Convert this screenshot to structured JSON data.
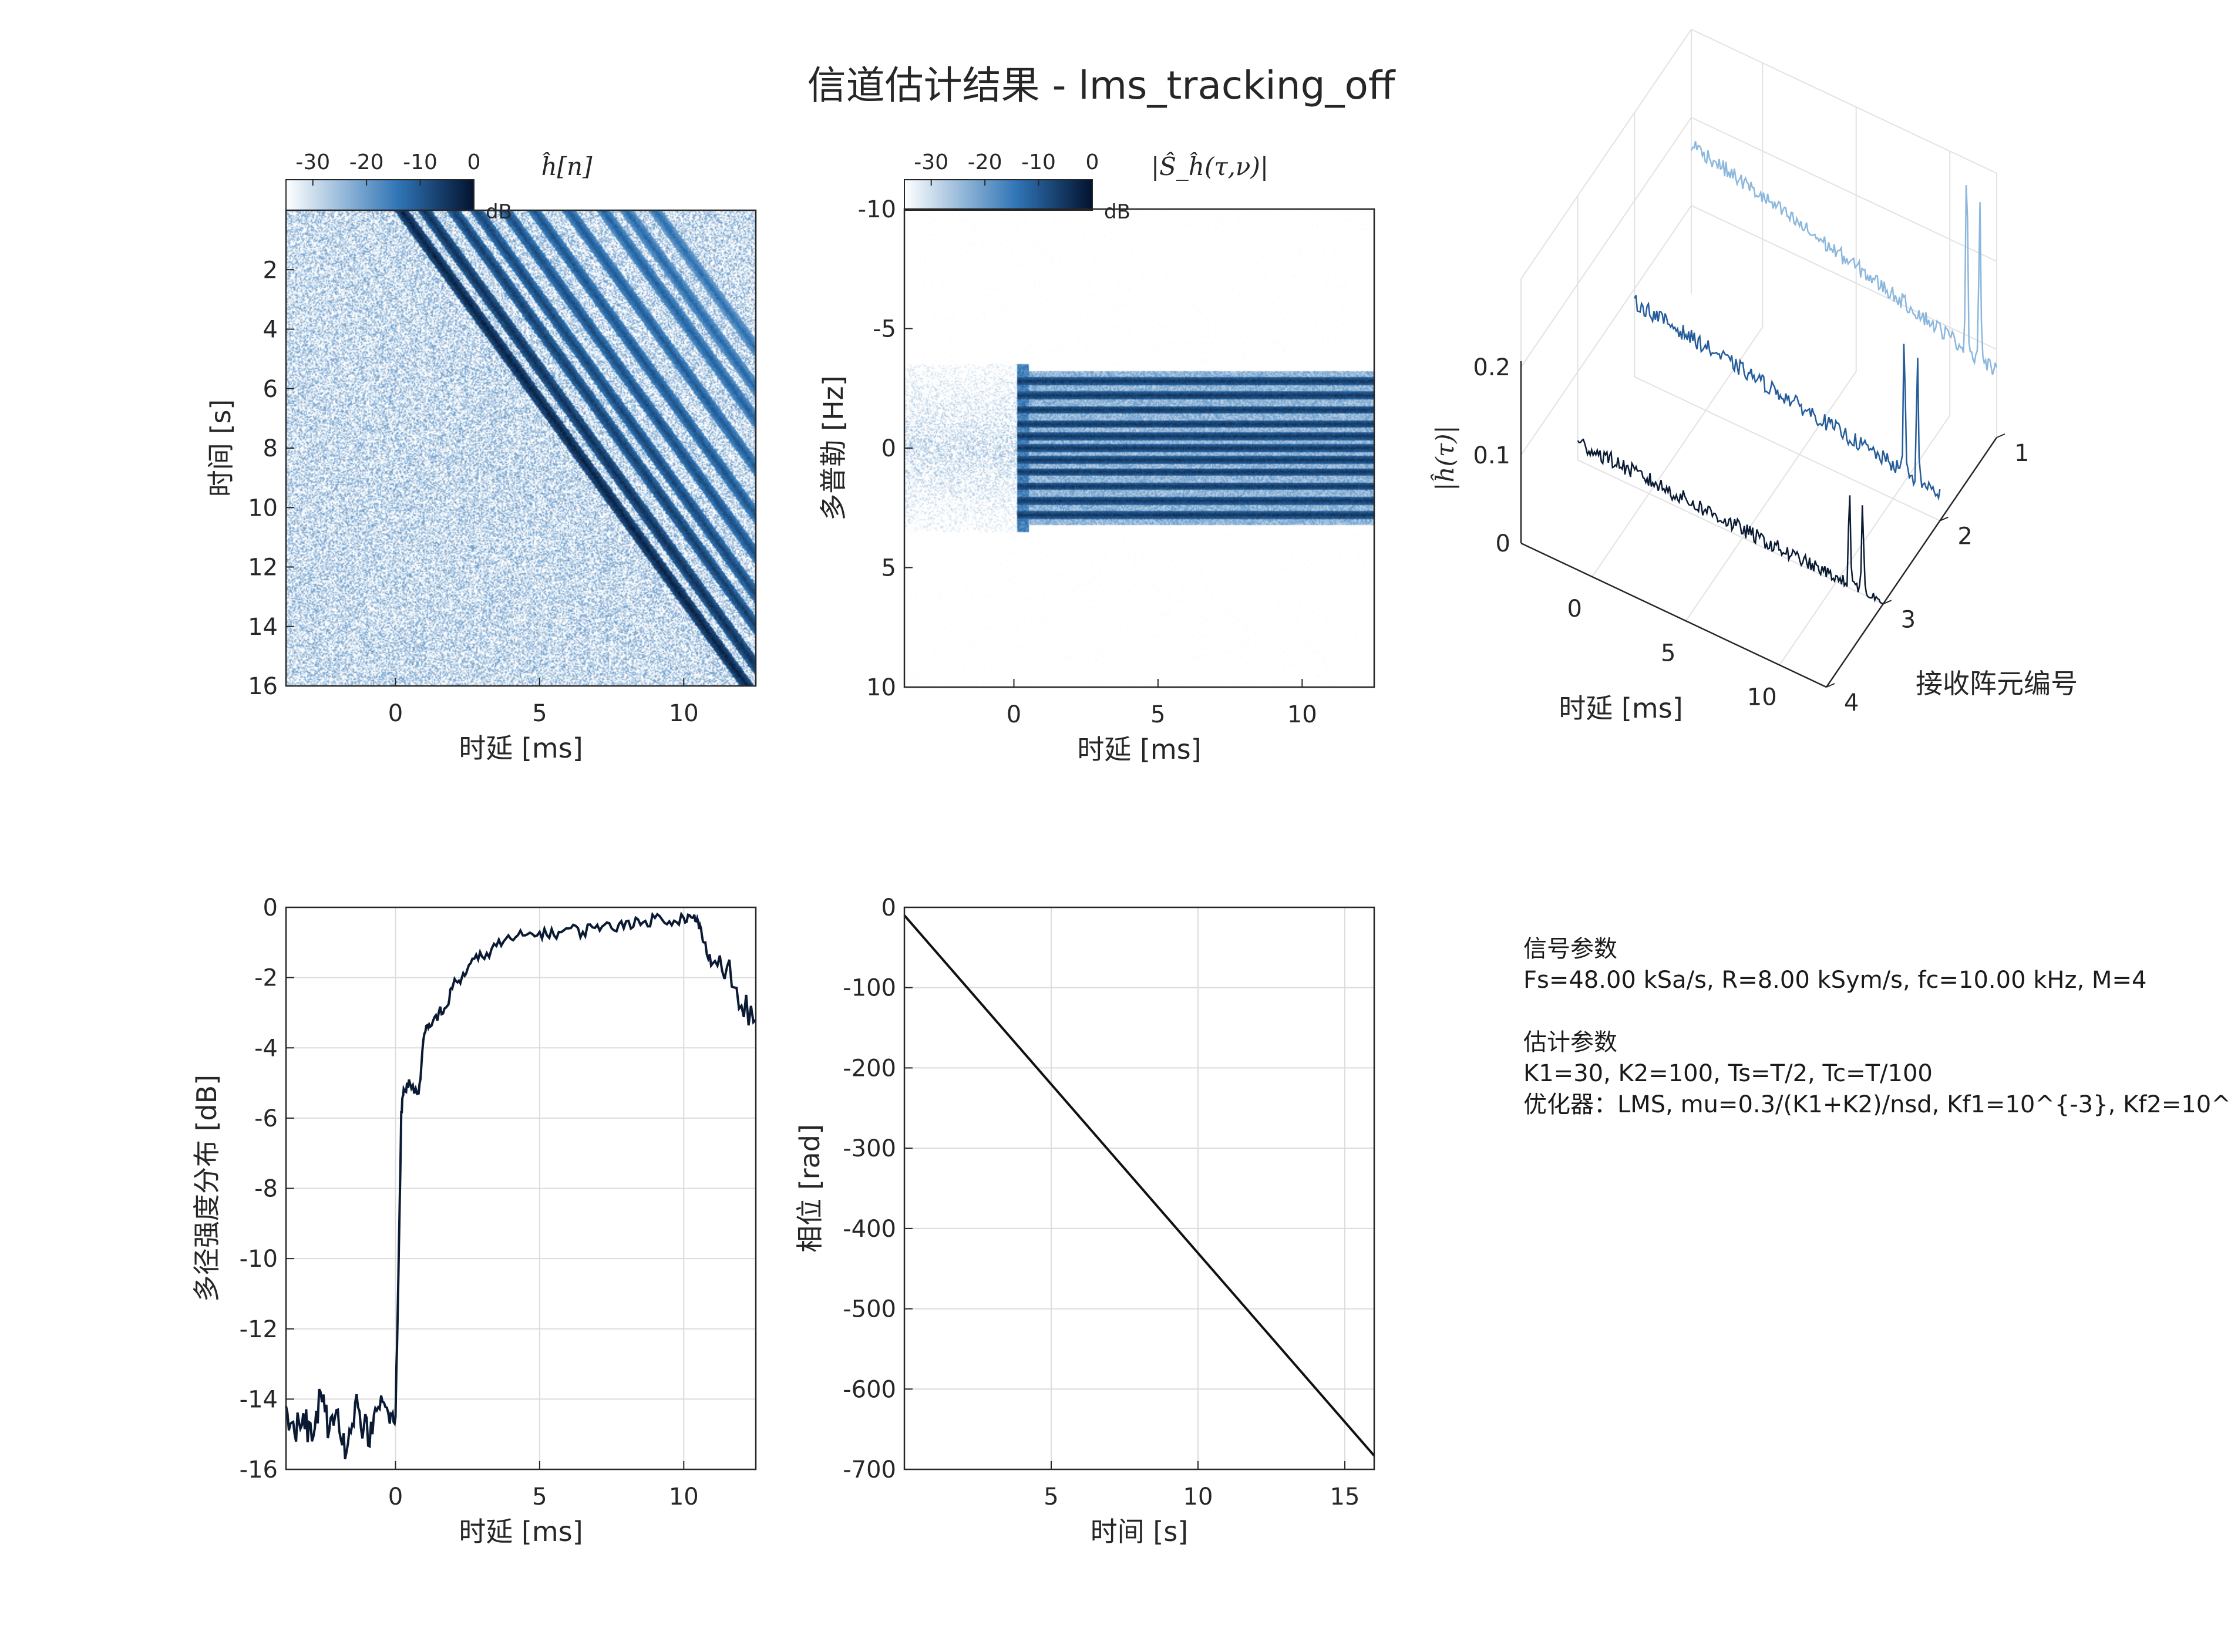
{
  "figure": {
    "title": "信道估计结果 - lms_tracking_off"
  },
  "colors": {
    "cmap_light": "#ffffff",
    "cmap_mid": "#2f74b5",
    "cmap_dark": "#03132f",
    "line": "#0a1a33",
    "grid": "#dcdcdc",
    "axis": "#262626"
  },
  "info_panel": {
    "signal_header": "信号参数",
    "signal_params": "Fs=48.00 kSa/s, R=8.00 kSym/s, fc=10.00 kHz, M=4",
    "estimation_header": "估计参数",
    "estimation_params": "K1=30, K2=100, Ts=T/2, Tc=T/100",
    "optimizer_params": "优化器：LMS, mu=0.3/(K1+K2)/nsd, Kf1=10^{-3}, Kf2=10^"
  },
  "chart_data": [
    {
      "id": "channel_impulse_response_time",
      "type": "heatmap",
      "title": "ĥ[n]",
      "xlabel": "时延 [ms]",
      "ylabel": "时间 [s]",
      "xlim": [
        -3.8,
        12.5
      ],
      "ylim": [
        0,
        16
      ],
      "y_reversed": true,
      "xticks": [
        0,
        5,
        10
      ],
      "yticks": [
        2,
        4,
        6,
        8,
        10,
        12,
        14,
        16
      ],
      "colorbar": {
        "label": "dB",
        "ticks": [
          -30,
          -20,
          -10,
          0
        ],
        "range": [
          -35,
          0
        ]
      },
      "paths": [
        {
          "delay_at_t0": 0.2,
          "slope_ms_per_s": 0.75,
          "level_db": 0
        },
        {
          "delay_at_t0": 1.0,
          "slope_ms_per_s": 0.75,
          "level_db": -2
        },
        {
          "delay_at_t0": 2.0,
          "slope_ms_per_s": 0.75,
          "level_db": -4
        },
        {
          "delay_at_t0": 2.8,
          "slope_ms_per_s": 0.75,
          "level_db": -5
        },
        {
          "delay_at_t0": 3.8,
          "slope_ms_per_s": 0.75,
          "level_db": -6
        },
        {
          "delay_at_t0": 4.8,
          "slope_ms_per_s": 0.75,
          "level_db": -7
        },
        {
          "delay_at_t0": 6.0,
          "slope_ms_per_s": 0.75,
          "level_db": -8
        },
        {
          "delay_at_t0": 7.2,
          "slope_ms_per_s": 0.75,
          "level_db": -9
        },
        {
          "delay_at_t0": 8.0,
          "slope_ms_per_s": 0.75,
          "level_db": -10
        },
        {
          "delay_at_t0": 9.0,
          "slope_ms_per_s": 0.75,
          "level_db": -11
        }
      ],
      "noise_floor_db": -28
    },
    {
      "id": "delay_doppler_spread",
      "type": "heatmap",
      "title": "|Ŝ_ĥ(τ,ν)|",
      "xlabel": "时延 [ms]",
      "ylabel": "多普勒 [Hz]",
      "xlim": [
        -3.8,
        12.5
      ],
      "ylim": [
        -10,
        10
      ],
      "y_reversed": true,
      "xticks": [
        0,
        5,
        10
      ],
      "yticks": [
        -10,
        -5,
        0,
        5,
        10
      ],
      "colorbar": {
        "label": "dB",
        "ticks": [
          -30,
          -20,
          -10,
          0
        ],
        "range": [
          -35,
          0
        ]
      },
      "doppler_bands": [
        -2.8,
        -2.2,
        -1.6,
        -1.0,
        -0.5,
        0,
        0.5,
        1.0,
        1.6,
        2.2,
        2.8
      ],
      "band_delay_range": [
        0.1,
        12.5
      ],
      "noise_floor_db": -30
    },
    {
      "id": "receiver_array_responses",
      "type": "line",
      "view": "3d",
      "xlabel": "时延 [ms]",
      "ylabel": "接收阵元编号",
      "zlabel": "|ĥ(τ)|",
      "xticks": [
        0,
        5,
        10
      ],
      "yticks": [
        1,
        2,
        3,
        4
      ],
      "zticks": [
        0,
        0.1,
        0.2
      ],
      "xlim": [
        -3.8,
        12.5
      ],
      "ylim": [
        1,
        4
      ],
      "zlim": [
        0,
        0.2
      ],
      "series": [
        {
          "element": 1,
          "color": "#8cb7dd",
          "baseline": 0.17,
          "decay_to": 0.075,
          "peaks": [
            {
              "x": 10.9,
              "z": 0.23
            },
            {
              "x": 11.6,
              "z": 0.19
            }
          ]
        },
        {
          "element": 2,
          "color": "#245c9a",
          "baseline": 0.085,
          "decay_to": 0.03,
          "peaks": [
            {
              "x": 10.6,
              "z": 0.16
            },
            {
              "x": 11.3,
              "z": 0.14
            }
          ]
        },
        {
          "element": 3,
          "color": "#0a1a33",
          "baseline": 0.02,
          "decay_to": 0.0,
          "peaks": [
            {
              "x": 10.7,
              "z": 0.12
            },
            {
              "x": 11.4,
              "z": 0.105
            }
          ]
        }
      ]
    },
    {
      "id": "multipath_intensity_profile",
      "type": "line",
      "xlabel": "时延 [ms]",
      "ylabel": "多径强度分布 [dB]",
      "xlim": [
        -3.8,
        12.5
      ],
      "ylim": [
        -16,
        0
      ],
      "xticks": [
        0,
        5,
        10
      ],
      "yticks": [
        0,
        -2,
        -4,
        -6,
        -8,
        -10,
        -12,
        -14,
        -16
      ],
      "grid": true,
      "x": [
        -3.8,
        -3.5,
        -3.2,
        -2.9,
        -2.6,
        -2.3,
        -2.0,
        -1.7,
        -1.4,
        -1.1,
        -0.8,
        -0.5,
        -0.2,
        0.0,
        0.1,
        0.2,
        0.3,
        0.5,
        0.8,
        1.0,
        1.2,
        1.5,
        1.8,
        2.0,
        2.3,
        2.6,
        3.0,
        3.5,
        4.0,
        4.5,
        5.0,
        5.5,
        6.0,
        6.5,
        7.0,
        7.5,
        8.0,
        8.5,
        9.0,
        9.5,
        10.0,
        10.3,
        10.5,
        10.7,
        11.0,
        11.5,
        12.0,
        12.5
      ],
      "y": [
        -14.2,
        -15.0,
        -14.4,
        -15.2,
        -13.8,
        -14.9,
        -14.3,
        -15.5,
        -14.1,
        -14.8,
        -15.0,
        -13.9,
        -14.7,
        -14.5,
        -10.5,
        -5.8,
        -5.2,
        -5.0,
        -5.3,
        -3.6,
        -3.4,
        -3.0,
        -2.8,
        -2.2,
        -2.0,
        -1.6,
        -1.4,
        -1.1,
        -0.9,
        -0.8,
        -0.7,
        -0.8,
        -0.6,
        -0.7,
        -0.5,
        -0.6,
        -0.4,
        -0.5,
        -0.3,
        -0.4,
        -0.3,
        -0.3,
        -0.4,
        -1.0,
        -1.6,
        -1.7,
        -2.8,
        -3.2
      ]
    },
    {
      "id": "phase_over_time",
      "type": "line",
      "xlabel": "时间 [s]",
      "ylabel": "相位 [rad]",
      "xlim": [
        0,
        16
      ],
      "ylim": [
        -700,
        0
      ],
      "xticks": [
        5,
        10,
        15
      ],
      "yticks": [
        0,
        -100,
        -200,
        -300,
        -400,
        -500,
        -600,
        -700
      ],
      "grid": true,
      "x": [
        0,
        16
      ],
      "y": [
        -10,
        -683
      ]
    }
  ]
}
